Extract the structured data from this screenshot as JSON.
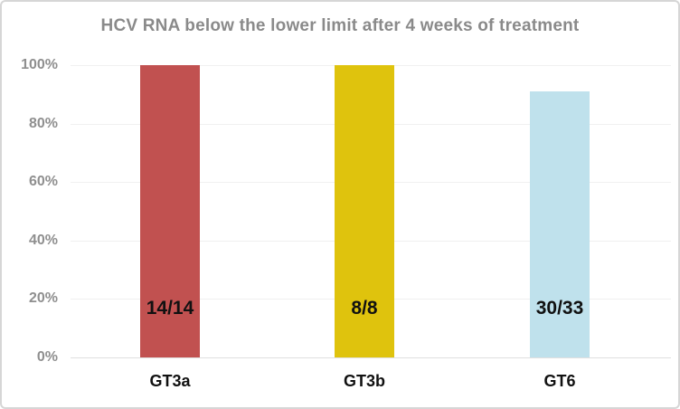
{
  "chart_data": {
    "type": "bar",
    "title": "HCV RNA below the lower limit after 4 weeks of treatment",
    "categories": [
      "GT3a",
      "GT3b",
      "GT6"
    ],
    "values": [
      100,
      100,
      90.9
    ],
    "bar_labels": [
      "14/14",
      "8/8",
      "30/33"
    ],
    "bar_colors": [
      "#c15150",
      "#dfc30d",
      "#bfe1ec"
    ],
    "xlabel": "",
    "ylabel": "",
    "ylim": [
      0,
      100
    ],
    "yticks": [
      0,
      20,
      40,
      60,
      80,
      100
    ],
    "ytick_labels": [
      "0%",
      "20%",
      "40%",
      "60%",
      "80%",
      "100%"
    ],
    "grid": "horizontal",
    "legend": "none",
    "colors": {
      "title_text": "#8a8a8a",
      "axis_tick_text": "#8f8f8f",
      "category_text": "#111111",
      "bar_value_text": "#111111",
      "gridline": "#f0f0f0",
      "border": "#d6d6d6",
      "background": "#ffffff"
    }
  }
}
